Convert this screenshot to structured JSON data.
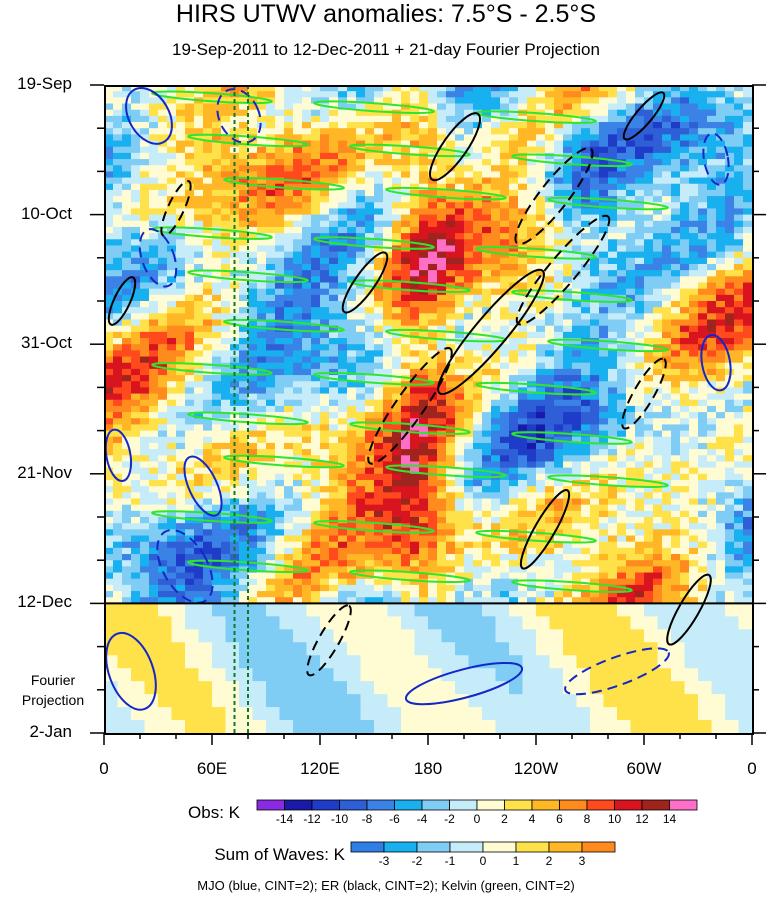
{
  "chart_data": {
    "type": "heatmap",
    "title": "HIRS UTWV anomalies: 7.5°S - 2.5°S",
    "subtitle": "19-Sep-2011 to 12-Dec-2011 + 21-day Fourier Projection",
    "x_ticks": [
      "0",
      "60E",
      "120E",
      "180",
      "120W",
      "60W",
      "0"
    ],
    "x_range_deg_east": [
      0,
      360
    ],
    "y_ticks": [
      "19-Sep",
      "10-Oct",
      "31-Oct",
      "21-Nov",
      "12-Dec",
      "2-Jan"
    ],
    "y_range_days": [
      0,
      105
    ],
    "observation_end": "12-Dec",
    "projection_label": [
      "Fourier",
      "Projection"
    ],
    "reference_longitudes_deg_east": [
      72.5,
      80
    ],
    "obs_colorbar": {
      "label": "Obs: K",
      "levels": [
        "-14",
        "-12",
        "-10",
        "-8",
        "-6",
        "-4",
        "-2",
        "0",
        "2",
        "4",
        "6",
        "8",
        "10",
        "12",
        "14"
      ],
      "colors": [
        "#8a2be2",
        "#1a1aa8",
        "#1e3cc8",
        "#2f5fd6",
        "#3b82e6",
        "#19b0f0",
        "#7fcdf5",
        "#c6ecfa",
        "#fffbd2",
        "#ffe14a",
        "#ffb726",
        "#ff8a1e",
        "#ff4a1e",
        "#d8141e",
        "#a0241e",
        "#ff6ec7"
      ]
    },
    "waves_colorbar": {
      "label": "Sum of Waves: K",
      "levels": [
        "-3",
        "-2",
        "-1",
        "0",
        "1",
        "2",
        "3"
      ],
      "colors": [
        "#2f7fe6",
        "#19b0f0",
        "#7fcdf5",
        "#c6ecfa",
        "#fffbd2",
        "#ffe14a",
        "#ffb726",
        "#ff8a1e"
      ]
    },
    "wave_contours": [
      {
        "name": "MJO",
        "color": "#1428c8",
        "cint": 2
      },
      {
        "name": "ER",
        "color": "#000000",
        "cint": 2
      },
      {
        "name": "Kelvin",
        "color": "#2ee62e",
        "cint": 2
      }
    ]
  },
  "footnote": "MJO (blue, CINT=2); ER (black, CINT=2); Kelvin (green, CINT=2)"
}
